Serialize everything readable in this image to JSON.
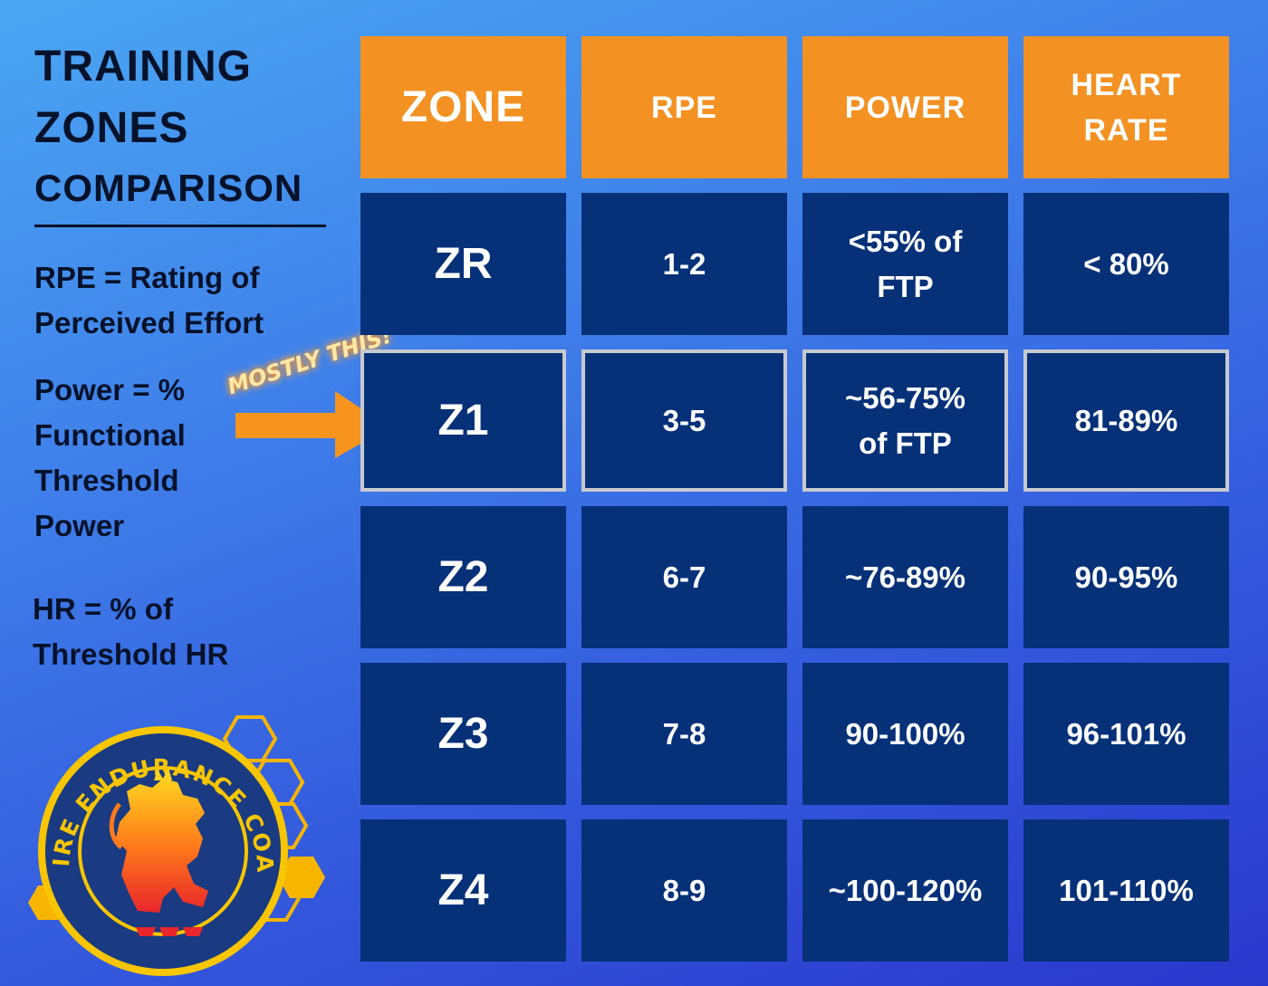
{
  "title": [
    "TRAINING",
    "ZONES",
    "COMPARISON"
  ],
  "legend": {
    "rpe": [
      "RPE = Rating of",
      "Perceived Effort"
    ],
    "power": [
      "Power = %",
      "Functional",
      "Threshold",
      "Power"
    ],
    "hr": [
      "HR = % of",
      "Threshold HR"
    ]
  },
  "annotation": {
    "text": "MOSTLY THIS!"
  },
  "table": {
    "headers": [
      "ZONE",
      "RPE",
      "POWER",
      "HEART RATE"
    ],
    "rows": [
      [
        "ZR",
        "1-2",
        "<55% of FTP",
        "< 80%"
      ],
      [
        "Z1",
        "3-5",
        "~56-75% of FTP",
        "81-89%"
      ],
      [
        "Z2",
        "6-7",
        "~76-89%",
        "90-95%"
      ],
      [
        "Z3",
        "7-8",
        "90-100%",
        "96-101%"
      ],
      [
        "Z4",
        "8-9",
        "~100-120%",
        "101-110%"
      ]
    ],
    "highlighted_row": 1
  },
  "logo": {
    "text": "CAMPFIRE ENDURANCE COACHING"
  },
  "colors": {
    "header": "#f39122",
    "cell": "#063178",
    "highlight_border": "#c8cad0"
  }
}
